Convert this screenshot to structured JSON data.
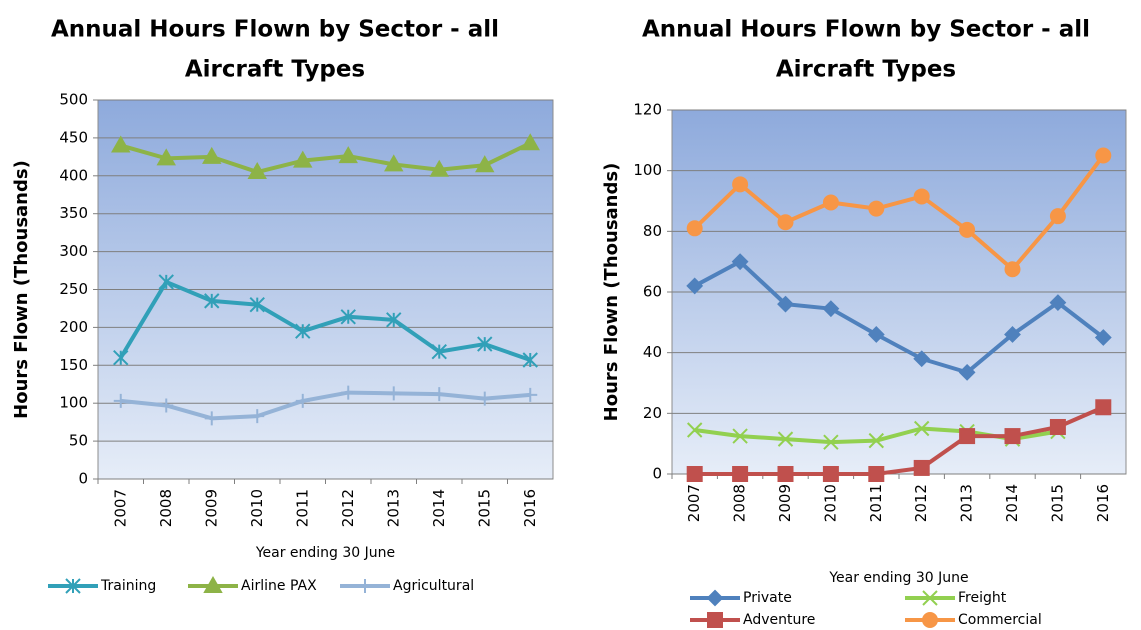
{
  "chart_data": [
    {
      "type": "line",
      "title": [
        "Annual Hours Flown by Sector - all",
        "Aircraft Types"
      ],
      "x_label": "Year ending 30 June",
      "y_label": "Hours Flown  (Thousands)",
      "categories": [
        "2007",
        "2008",
        "2009",
        "2010",
        "2011",
        "2012",
        "2013",
        "2014",
        "2015",
        "2016"
      ],
      "ylim": [
        0,
        500
      ],
      "yticks": [
        0,
        50,
        100,
        150,
        200,
        250,
        300,
        350,
        400,
        450,
        500
      ],
      "grid": true,
      "series": [
        {
          "name": "Training",
          "color": "#31a0b8",
          "marker": "star",
          "values": [
            160,
            260,
            235,
            230,
            195,
            214,
            210,
            168,
            178,
            157
          ]
        },
        {
          "name": "Airline PAX",
          "color": "#8db347",
          "marker": "triangle",
          "values": [
            440,
            423,
            425,
            405,
            420,
            426,
            415,
            408,
            414,
            443
          ]
        },
        {
          "name": "Agricultural",
          "color": "#95b3d7",
          "marker": "plus",
          "values": [
            103,
            97,
            80,
            83,
            103,
            114,
            113,
            112,
            106,
            111
          ]
        }
      ]
    },
    {
      "type": "line",
      "title": [
        "Annual Hours Flown by Sector - all",
        "Aircraft Types"
      ],
      "x_label": "Year ending 30 June",
      "y_label": "Hours Flown  (Thousands)",
      "categories": [
        "2007",
        "2008",
        "2009",
        "2010",
        "2011",
        "2012",
        "2013",
        "2014",
        "2015",
        "2016"
      ],
      "ylim": [
        0,
        120
      ],
      "yticks": [
        0,
        20,
        40,
        60,
        80,
        100,
        120
      ],
      "grid": true,
      "series": [
        {
          "name": "Private",
          "color": "#4f81bd",
          "marker": "diamond",
          "values": [
            62,
            70,
            56,
            54.5,
            46,
            38,
            33.5,
            46,
            56.5,
            45
          ]
        },
        {
          "name": "Freight",
          "color": "#92d050",
          "marker": "cross",
          "values": [
            14.5,
            12.5,
            11.5,
            10.5,
            11,
            15,
            14,
            11.5,
            14,
            null
          ]
        },
        {
          "name": "Adventure",
          "color": "#c0504d",
          "marker": "square",
          "values": [
            0,
            0,
            0,
            0,
            0,
            2,
            12.5,
            12.5,
            15.5,
            22
          ]
        },
        {
          "name": "Commercial",
          "color": "#f79646",
          "marker": "circle",
          "values": [
            81,
            95.5,
            83,
            89.5,
            87.5,
            91.5,
            80.5,
            67.5,
            85,
            105
          ]
        }
      ]
    }
  ]
}
